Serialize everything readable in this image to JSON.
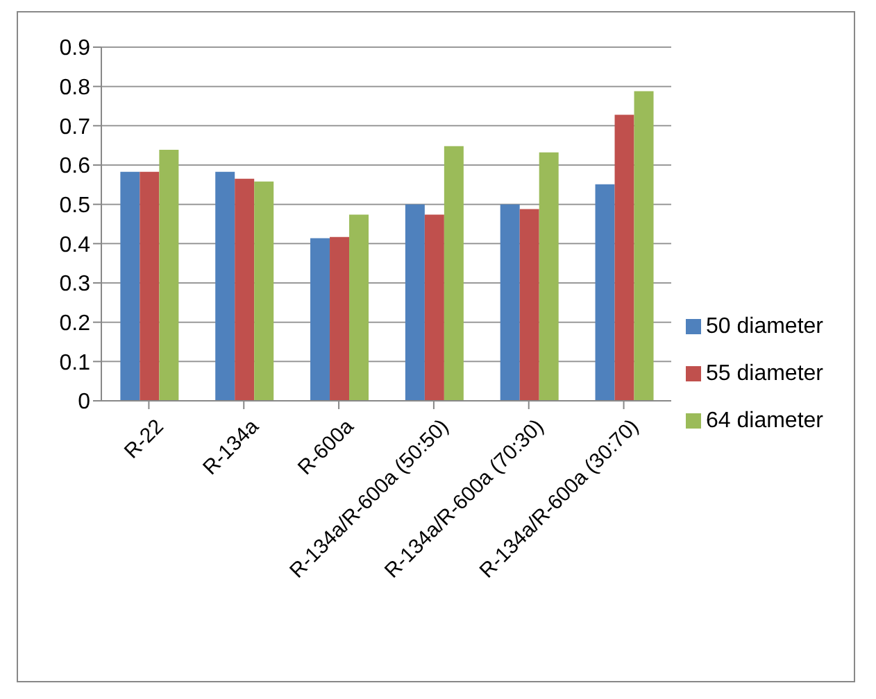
{
  "chart_data": {
    "type": "bar",
    "categories": [
      "R-22",
      "R-134a",
      "R-600a",
      "R-134a/R-600a (50:50)",
      "R-134a/R-600a (70:30)",
      "R-134a/R-600a (30:70)"
    ],
    "series": [
      {
        "name": "50 diameter",
        "color": "#4f81bd",
        "values": [
          0.583,
          0.583,
          0.414,
          0.5,
          0.5,
          0.551
        ]
      },
      {
        "name": "55 diameter",
        "color": "#c0504d",
        "values": [
          0.583,
          0.565,
          0.417,
          0.474,
          0.488,
          0.728
        ]
      },
      {
        "name": "64 diameter",
        "color": "#9bbb59",
        "values": [
          0.639,
          0.558,
          0.474,
          0.648,
          0.632,
          0.788
        ]
      }
    ],
    "ylim": [
      0,
      0.9
    ],
    "yticks": [
      0,
      0.1,
      0.2,
      0.3,
      0.4,
      0.5,
      0.6,
      0.7,
      0.8,
      0.9
    ],
    "grid": "y",
    "legend": "right"
  }
}
